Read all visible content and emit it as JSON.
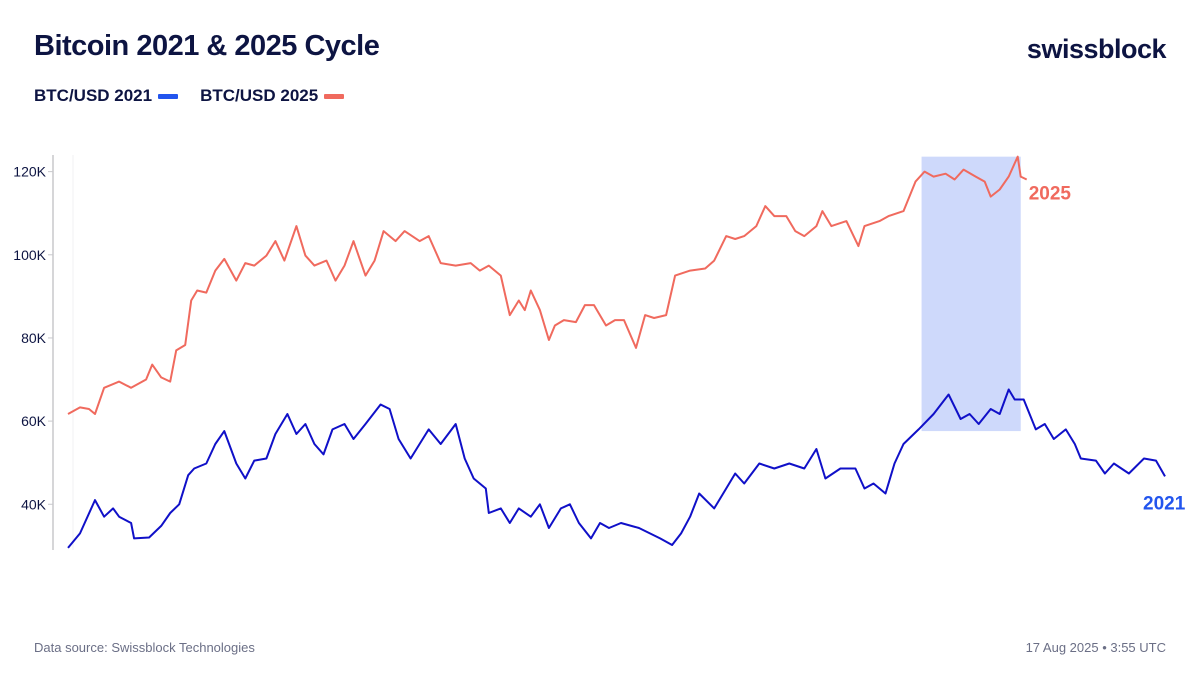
{
  "header": {
    "title": "Bitcoin 2021 & 2025 Cycle",
    "logo": "swissblock"
  },
  "footer": {
    "source": "Data source: Swissblock Technologies",
    "timestamp": "17 Aug 2025 • 3:55 UTC"
  },
  "colors": {
    "text": "#0d1442",
    "series_2021": "#1010c8",
    "legend_2021": "#2255ee",
    "series_2025": "#f06a5e",
    "highlight": "#c9d5fb"
  },
  "chart_data": {
    "type": "line",
    "title": "Bitcoin 2021 & 2025 Cycle",
    "xlabel": "",
    "ylabel": "",
    "ylim": [
      29,
      124
    ],
    "xlim": [
      0,
      365
    ],
    "y_ticks": [
      {
        "value": 40,
        "label": "40K"
      },
      {
        "value": 60,
        "label": "60K"
      },
      {
        "value": 80,
        "label": "80K"
      },
      {
        "value": 100,
        "label": "100K"
      },
      {
        "value": 120,
        "label": "120K"
      }
    ],
    "grid": false,
    "legend_placement": "top-left",
    "highlight_band": {
      "x": [
        284,
        317
      ],
      "y": [
        57.6,
        123.6
      ]
    },
    "series": [
      {
        "name": "BTC/USD 2021",
        "end_label": "2021",
        "color": "#1010c8",
        "points": [
          [
            0,
            29.5
          ],
          [
            4,
            33
          ],
          [
            9,
            41
          ],
          [
            12,
            37
          ],
          [
            15,
            39
          ],
          [
            17,
            37
          ],
          [
            21,
            35.5
          ],
          [
            22,
            31.8
          ],
          [
            27,
            32
          ],
          [
            31,
            34.8
          ],
          [
            34,
            37.9
          ],
          [
            37,
            40
          ],
          [
            40,
            47
          ],
          [
            42,
            48.6
          ],
          [
            46,
            49.8
          ],
          [
            49,
            54.5
          ],
          [
            52,
            57.6
          ],
          [
            56,
            49.8
          ],
          [
            59,
            46.2
          ],
          [
            62,
            50.5
          ],
          [
            66,
            51
          ],
          [
            69,
            56.9
          ],
          [
            73,
            61.7
          ],
          [
            76,
            56.9
          ],
          [
            79,
            59.3
          ],
          [
            82,
            54.5
          ],
          [
            85,
            52
          ],
          [
            88,
            58
          ],
          [
            92,
            59.3
          ],
          [
            95,
            55.7
          ],
          [
            99,
            59.3
          ],
          [
            104,
            64
          ],
          [
            107,
            62.9
          ],
          [
            110,
            55.7
          ],
          [
            114,
            51
          ],
          [
            117,
            54.5
          ],
          [
            120,
            58
          ],
          [
            124,
            54.5
          ],
          [
            129,
            59.3
          ],
          [
            132,
            51
          ],
          [
            135,
            46.2
          ],
          [
            139,
            43.8
          ],
          [
            140,
            37.9
          ],
          [
            144,
            39
          ],
          [
            147,
            35.5
          ],
          [
            150,
            39
          ],
          [
            154,
            37
          ],
          [
            157,
            40
          ],
          [
            160,
            34.3
          ],
          [
            164,
            39
          ],
          [
            167,
            40
          ],
          [
            170,
            35.5
          ],
          [
            174,
            31.8
          ],
          [
            177,
            35.5
          ],
          [
            180,
            34.3
          ],
          [
            184,
            35.5
          ],
          [
            190,
            34.3
          ],
          [
            197,
            31.8
          ],
          [
            201,
            30.2
          ],
          [
            204,
            33
          ],
          [
            207,
            37
          ],
          [
            210,
            42.6
          ],
          [
            215,
            39
          ],
          [
            219,
            43.8
          ],
          [
            222,
            47.4
          ],
          [
            225,
            45
          ],
          [
            230,
            49.8
          ],
          [
            235,
            48.6
          ],
          [
            240,
            49.8
          ],
          [
            245,
            48.6
          ],
          [
            249,
            53.3
          ],
          [
            252,
            46.2
          ],
          [
            257,
            48.6
          ],
          [
            262,
            48.6
          ],
          [
            265,
            43.8
          ],
          [
            268,
            45
          ],
          [
            272,
            42.6
          ],
          [
            275,
            49.8
          ],
          [
            278,
            54.5
          ],
          [
            283,
            58
          ],
          [
            288,
            61.7
          ],
          [
            293,
            66.4
          ],
          [
            297,
            60.5
          ],
          [
            300,
            61.7
          ],
          [
            303,
            59.3
          ],
          [
            307,
            62.9
          ],
          [
            310,
            61.7
          ],
          [
            313,
            67.6
          ],
          [
            315,
            65.2
          ],
          [
            318,
            65.2
          ],
          [
            322,
            58
          ],
          [
            325,
            59.3
          ],
          [
            328,
            55.7
          ],
          [
            332,
            58
          ],
          [
            335,
            54.5
          ],
          [
            337,
            51
          ],
          [
            342,
            50.5
          ],
          [
            345,
            47.4
          ],
          [
            348,
            49.8
          ],
          [
            353,
            47.4
          ],
          [
            358,
            51
          ],
          [
            362,
            50.5
          ],
          [
            365,
            46.7
          ]
        ]
      },
      {
        "name": "BTC/USD 2025",
        "end_label": "2025",
        "color": "#f06a5e",
        "points": [
          [
            0,
            61.7
          ],
          [
            4,
            63.3
          ],
          [
            7,
            62.9
          ],
          [
            9,
            61.7
          ],
          [
            12,
            68
          ],
          [
            17,
            69.5
          ],
          [
            21,
            68
          ],
          [
            26,
            70
          ],
          [
            28,
            73.6
          ],
          [
            31,
            70.5
          ],
          [
            34,
            69.5
          ],
          [
            36,
            77
          ],
          [
            39,
            78.3
          ],
          [
            41,
            89
          ],
          [
            43,
            91.4
          ],
          [
            46,
            90.9
          ],
          [
            49,
            96.2
          ],
          [
            52,
            99
          ],
          [
            56,
            93.8
          ],
          [
            59,
            98
          ],
          [
            62,
            97.4
          ],
          [
            66,
            99.8
          ],
          [
            69,
            103.3
          ],
          [
            72,
            98.6
          ],
          [
            76,
            106.9
          ],
          [
            79,
            99.8
          ],
          [
            82,
            97.4
          ],
          [
            86,
            98.6
          ],
          [
            89,
            93.8
          ],
          [
            92,
            97.4
          ],
          [
            95,
            103.3
          ],
          [
            99,
            95
          ],
          [
            102,
            98.6
          ],
          [
            105,
            105.7
          ],
          [
            109,
            103.3
          ],
          [
            112,
            105.7
          ],
          [
            117,
            103.3
          ],
          [
            120,
            104.5
          ],
          [
            124,
            98
          ],
          [
            129,
            97.4
          ],
          [
            134,
            98
          ],
          [
            137,
            96.2
          ],
          [
            140,
            97.4
          ],
          [
            144,
            95
          ],
          [
            147,
            85.5
          ],
          [
            150,
            89
          ],
          [
            152,
            86.7
          ],
          [
            154,
            91.4
          ],
          [
            157,
            86.7
          ],
          [
            160,
            79.5
          ],
          [
            162,
            83
          ],
          [
            165,
            84.3
          ],
          [
            169,
            83.8
          ],
          [
            172,
            87.9
          ],
          [
            175,
            87.9
          ],
          [
            179,
            83
          ],
          [
            182,
            84.3
          ],
          [
            185,
            84.3
          ],
          [
            189,
            77.6
          ],
          [
            192,
            85.5
          ],
          [
            195,
            84.8
          ],
          [
            199,
            85.5
          ],
          [
            202,
            95
          ],
          [
            207,
            96.2
          ],
          [
            212,
            96.7
          ],
          [
            215,
            98.6
          ],
          [
            219,
            104.5
          ],
          [
            222,
            103.8
          ],
          [
            225,
            104.5
          ],
          [
            229,
            106.9
          ],
          [
            232,
            111.7
          ],
          [
            235,
            109.3
          ],
          [
            239,
            109.3
          ],
          [
            242,
            105.7
          ],
          [
            245,
            104.5
          ],
          [
            249,
            106.9
          ],
          [
            251,
            110.5
          ],
          [
            254,
            106.9
          ],
          [
            259,
            108.1
          ],
          [
            263,
            102.1
          ],
          [
            265,
            106.9
          ],
          [
            270,
            108.1
          ],
          [
            273,
            109.3
          ],
          [
            278,
            110.5
          ],
          [
            282,
            117.6
          ],
          [
            285,
            120
          ],
          [
            288,
            118.8
          ],
          [
            292,
            119.5
          ],
          [
            295,
            118.1
          ],
          [
            298,
            120.5
          ],
          [
            302,
            118.8
          ],
          [
            305,
            117.6
          ],
          [
            307,
            114
          ],
          [
            310,
            115.7
          ],
          [
            313,
            118.8
          ],
          [
            316,
            123.6
          ],
          [
            317,
            118.8
          ],
          [
            319,
            118.1
          ]
        ]
      }
    ]
  }
}
